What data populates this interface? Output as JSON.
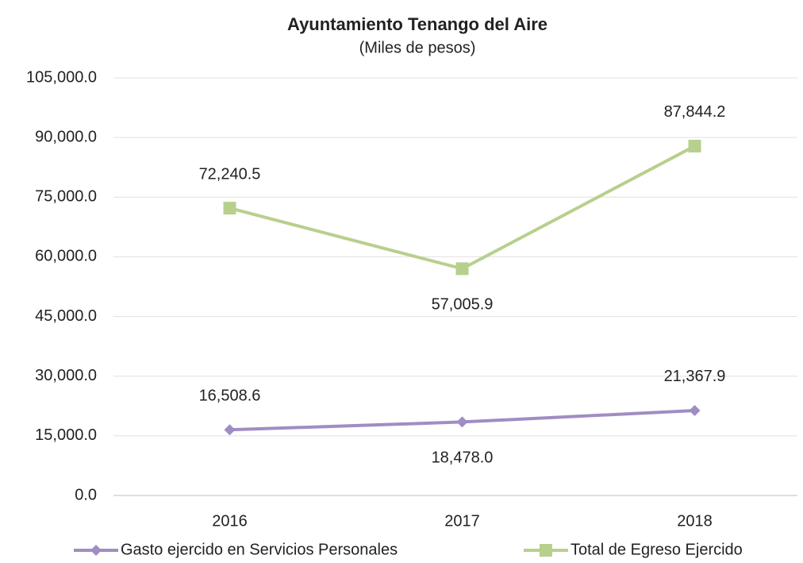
{
  "chart_data": {
    "type": "line",
    "title": "Ayuntamiento  Tenango del Aire",
    "subtitle": "(Miles de pesos)",
    "categories": [
      "2016",
      "2017",
      "2018"
    ],
    "series": [
      {
        "name": "Gasto ejercido en Servicios Personales",
        "color": "#9f8dc3",
        "marker": "diamond",
        "values": [
          16508.6,
          18478.0,
          21367.9
        ],
        "value_labels": [
          "16,508.6",
          "18,478.0",
          "21,367.9"
        ]
      },
      {
        "name": "Total de Egreso Ejercido",
        "color": "#b7d08d",
        "marker": "square",
        "values": [
          72240.5,
          57005.9,
          87844.2
        ],
        "value_labels": [
          "72,240.5",
          "57,005.9",
          "87,844.2"
        ]
      }
    ],
    "ylim": [
      0,
      105000
    ],
    "yticks": [
      {
        "value": 0,
        "label": "0.0"
      },
      {
        "value": 15000,
        "label": "15,000.0"
      },
      {
        "value": 30000,
        "label": "30,000.0"
      },
      {
        "value": 45000,
        "label": "45,000.0"
      },
      {
        "value": 60000,
        "label": "60,000.0"
      },
      {
        "value": 75000,
        "label": "75,000.0"
      },
      {
        "value": 90000,
        "label": "90,000.0"
      },
      {
        "value": 105000,
        "label": "105,000.0"
      }
    ],
    "grid": true,
    "legend": "bottom"
  }
}
